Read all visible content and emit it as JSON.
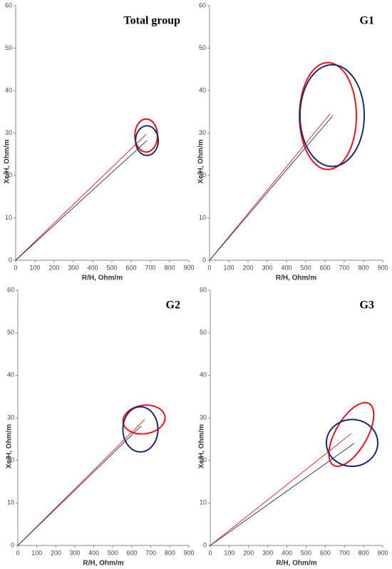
{
  "chart_data": [
    {
      "type": "line",
      "title": "Total group",
      "xlabel": "R/H, Ohm/m",
      "ylabel": "Xc/H, Ohm/m",
      "xlim": [
        0,
        900
      ],
      "xticks": [
        0,
        100,
        200,
        300,
        400,
        500,
        600,
        700,
        800,
        900
      ],
      "ylim": [
        0,
        60
      ],
      "yticks": [
        0,
        10,
        20,
        30,
        40,
        50,
        60
      ],
      "series": [
        {
          "color": "#e8141b",
          "x": [
            0,
            678
          ],
          "values": [
            0,
            29.7
          ]
        },
        {
          "color": "#1a2b6b",
          "x": [
            0,
            682
          ],
          "values": [
            0,
            28.2
          ]
        }
      ],
      "ellipses": [
        {
          "color": "#e8141b",
          "center": [
            678,
            29.4
          ],
          "radii": [
            59,
            3.9
          ],
          "angle": 0
        },
        {
          "color": "#1a2b6b",
          "center": [
            682,
            28.2
          ],
          "radii": [
            59,
            3.5
          ],
          "angle": 0
        }
      ]
    },
    {
      "type": "line",
      "title": "G1",
      "xlabel": "R/H, Ohm/m",
      "ylabel": "Xc/H, Ohm/m",
      "xlim": [
        0,
        900
      ],
      "xticks": [
        0,
        100,
        200,
        300,
        400,
        500,
        600,
        700,
        800,
        900
      ],
      "ylim": [
        0,
        60
      ],
      "yticks": [
        0,
        10,
        20,
        30,
        40,
        50,
        60
      ],
      "series": [
        {
          "color": "#e8141b",
          "x": [
            0,
            626
          ],
          "values": [
            0,
            34.5
          ]
        },
        {
          "color": "#1a2b6b",
          "x": [
            0,
            641
          ],
          "values": [
            0,
            34.1
          ]
        }
      ],
      "ellipses": [
        {
          "color": "#e8141b",
          "center": [
            615,
            34
          ],
          "radii": [
            148,
            12.6
          ],
          "angle": 0
        },
        {
          "color": "#1a2b6b",
          "center": [
            637,
            34.1
          ],
          "radii": [
            167,
            12
          ],
          "angle": 0
        }
      ]
    },
    {
      "type": "line",
      "title": "G2",
      "xlabel": "R/H, Ohm/m",
      "ylabel": "Xc/H, Ohm/m",
      "xlim": [
        0,
        900
      ],
      "xticks": [
        0,
        100,
        200,
        300,
        400,
        500,
        600,
        700,
        800,
        900
      ],
      "ylim": [
        0,
        60
      ],
      "yticks": [
        0,
        10,
        20,
        30,
        40,
        50,
        60
      ],
      "series": [
        {
          "color": "#e8141b",
          "x": [
            0,
            667
          ],
          "values": [
            0,
            29.6
          ]
        },
        {
          "color": "#1a2b6b",
          "x": [
            0,
            649
          ],
          "values": [
            0,
            28.1
          ]
        }
      ],
      "ellipses": [
        {
          "color": "#e8141b",
          "center": [
            664,
            29.6
          ],
          "radii": [
            111,
            3.35
          ],
          "angle": -8
        },
        {
          "color": "#1a2b6b",
          "center": [
            645,
            27.3
          ],
          "radii": [
            92,
            5.3
          ],
          "angle": 0
        }
      ]
    },
    {
      "type": "line",
      "title": "G3",
      "xlabel": "R/H, Ohm/m",
      "ylabel": "Xc/H, Ohm/m",
      "xlim": [
        0,
        900
      ],
      "xticks": [
        0,
        100,
        200,
        300,
        400,
        500,
        600,
        700,
        800,
        900
      ],
      "ylim": [
        0,
        60
      ],
      "yticks": [
        0,
        10,
        20,
        30,
        40,
        50,
        60
      ],
      "series": [
        {
          "color": "#e8141b",
          "x": [
            0,
            736
          ],
          "values": [
            0,
            26.3
          ]
        },
        {
          "color": "#1a2b6b",
          "x": [
            0,
            751
          ],
          "values": [
            0,
            24
          ]
        }
      ],
      "ellipses": [
        {
          "color": "#e8141b",
          "center": [
            736,
            26.1
          ],
          "radii": [
            186,
            3.7
          ],
          "angle": -60
        },
        {
          "color": "#1a2b6b",
          "center": [
            740,
            24.1
          ],
          "radii": [
            134,
            5.5
          ],
          "angle": 0
        }
      ]
    }
  ]
}
